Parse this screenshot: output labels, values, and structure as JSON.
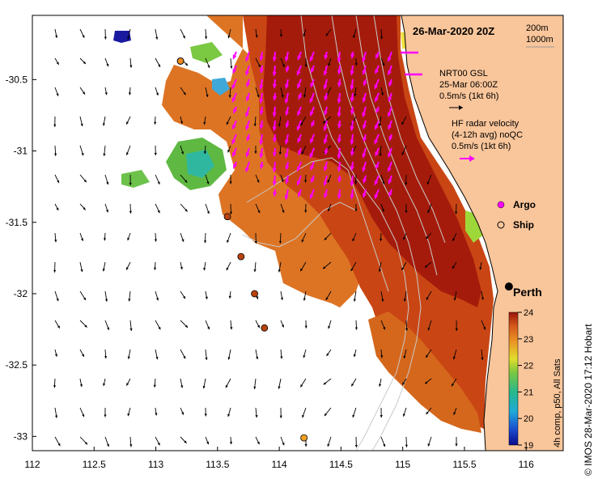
{
  "title": "26-Mar-2020 20Z",
  "depth_legend": {
    "a": "200m",
    "b": "1000m"
  },
  "nrt": {
    "line1": "NRT00 GSL",
    "line2": "25-Mar 06:00Z",
    "line3": "0.5m/s (1kt 6h)"
  },
  "hf": {
    "line1": "HF radar velocity",
    "line2": "(4-12h avg) noQC",
    "line3": "0.5m/s (1kt 6h)"
  },
  "markers": {
    "argo": "Argo",
    "ship": "Ship"
  },
  "city": "Perth",
  "credit": "© IMOS 28-Mar-2020 17:12 Hobart",
  "colorbar": {
    "label": "4h comp, p50, All Sats",
    "ticks": [
      "24",
      "23",
      "22",
      "21",
      "20",
      "19"
    ],
    "min": 19,
    "max": 24
  },
  "axes": {
    "x_ticks": [
      "112",
      "112.5",
      "113",
      "113.5",
      "114",
      "114.5",
      "115",
      "115.5",
      "116"
    ],
    "y_ticks": [
      "-30.5",
      "-31",
      "-31.5",
      "-32",
      "-32.5",
      "-33"
    ],
    "lon_range": [
      112,
      116.3
    ],
    "lat_range": [
      -33.1,
      -30.05
    ]
  },
  "colors": {
    "land": "#f9c59a",
    "sst_hot": "#a51b0b",
    "sst_warm": "#d7641b",
    "sst_mid": "#e89a25",
    "hf_arrow": "#ff00ff",
    "ship_fill": "#b8430f"
  },
  "ships": [
    {
      "lon": 113.58,
      "lat": -31.46
    },
    {
      "lon": 113.69,
      "lat": -31.74
    },
    {
      "lon": 113.8,
      "lat": -32.0
    },
    {
      "lon": 113.88,
      "lat": -32.24
    },
    {
      "lon": 114.2,
      "lat": -33.01
    }
  ],
  "argo": [
    {
      "lon": 113.2,
      "lat": -30.37
    }
  ],
  "city_marker": {
    "lon": 115.86,
    "lat": -31.95
  }
}
